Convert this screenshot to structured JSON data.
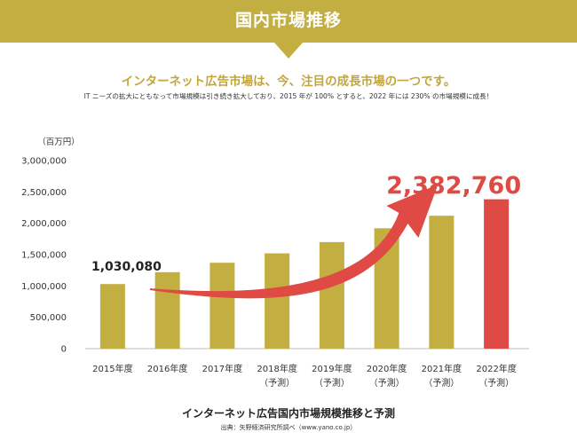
{
  "banner": {
    "title": "国内市場推移",
    "color": "#c3ae42"
  },
  "headline": "インターネット広告市場は、今、注目の成長市場の一つです。",
  "subline": "IT ニーズの拡大にともなって市場規模は引き続き拡大しており、2015 年が 100% とすると、2022 年には 230% の市場規模に成長！",
  "chart_data": {
    "type": "bar",
    "unit_label": "（百万円）",
    "categories": [
      [
        "2015年度"
      ],
      [
        "2016年度"
      ],
      [
        "2017年度"
      ],
      [
        "2018年度",
        "（予測）"
      ],
      [
        "2019年度",
        "（予測）"
      ],
      [
        "2020年度",
        "（予測）"
      ],
      [
        "2021年度",
        "（予測）"
      ],
      [
        "2022年度",
        "（予測）"
      ]
    ],
    "values": [
      1030080,
      1220000,
      1370000,
      1520000,
      1700000,
      1920000,
      2120000,
      2382760
    ],
    "ylim": [
      0,
      3000000
    ],
    "yticks": [
      0,
      500000,
      1000000,
      1500000,
      2000000,
      2500000,
      3000000
    ],
    "ytick_labels": [
      "0",
      "500,000",
      "1,000,000",
      "1,500,000",
      "2,000,000",
      "2,500,000",
      "3,000,000"
    ],
    "bar_color": "#c3ae42",
    "highlight_color": "#e04a45",
    "highlight_index": 7,
    "annotations": [
      {
        "text": "1,030,080",
        "index": 0,
        "color": "#222222"
      },
      {
        "text": "2,382,760",
        "index": 7,
        "color": "#e04a45"
      }
    ],
    "arrow": {
      "present": true,
      "color": "#e04a45"
    },
    "legend": "none",
    "grid": false
  },
  "caption": "インターネット広告国内市場規模推移と予測",
  "source": "出典：矢野経済研究所調べ（www.yano.co.jp）"
}
